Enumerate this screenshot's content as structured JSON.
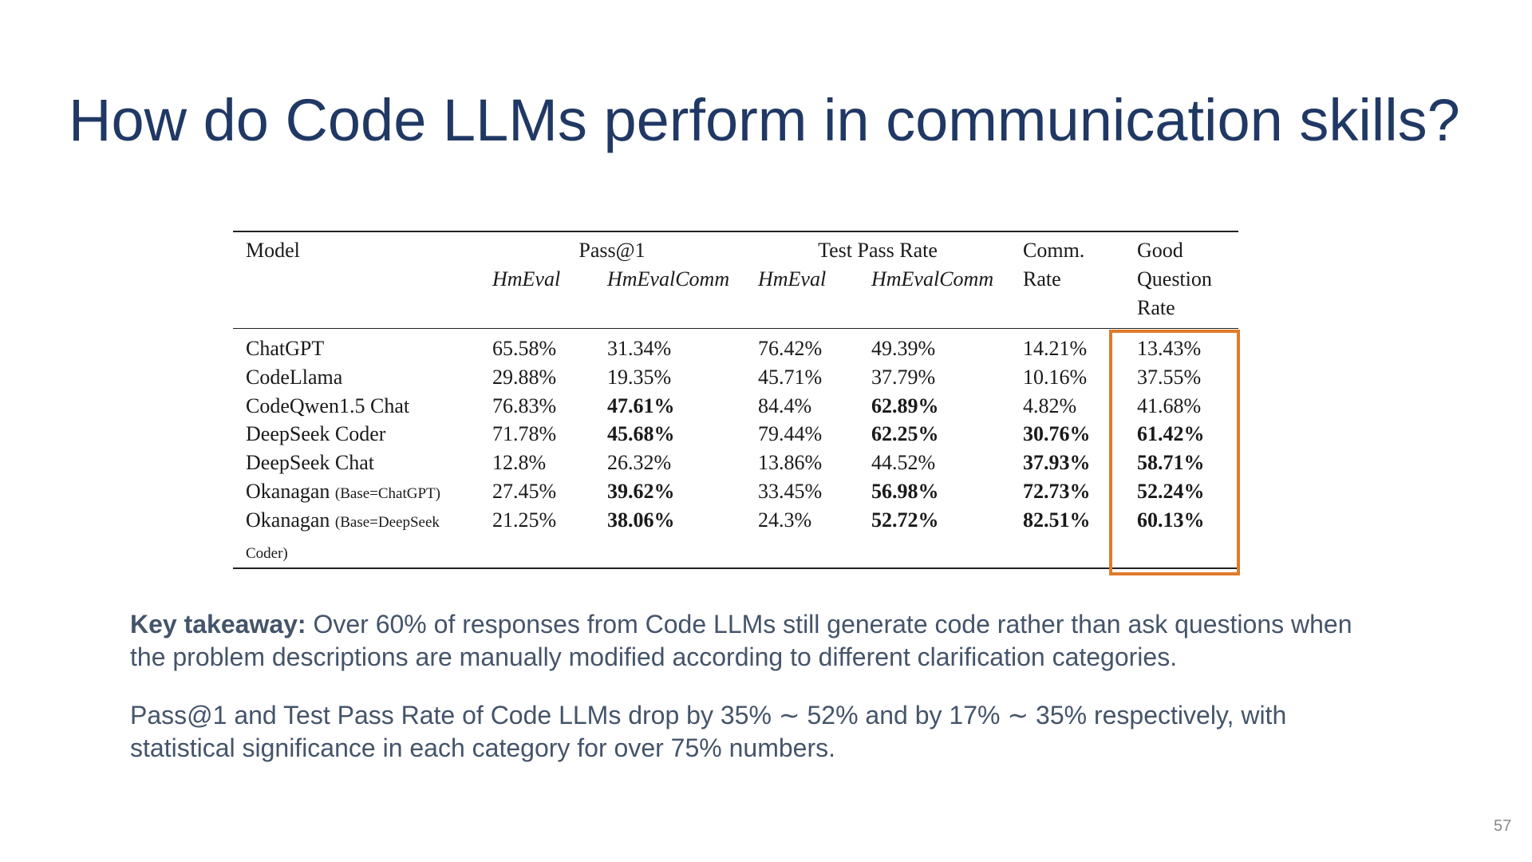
{
  "title": "How do Code LLMs perform in communication skills?",
  "table": {
    "header": {
      "model": "Model",
      "groups": [
        {
          "label": "Pass@1",
          "sub": [
            "HmEval",
            "HmEvalComm"
          ]
        },
        {
          "label": "Test Pass Rate",
          "sub": [
            "HmEval",
            "HmEvalComm"
          ]
        }
      ],
      "comm_rate": "Comm. Rate",
      "good_question_rate": "Good Question Rate"
    },
    "rows": [
      {
        "model": "ChatGPT",
        "values": [
          "65.58%",
          "31.34%",
          "76.42%",
          "49.39%",
          "14.21%",
          "13.43%"
        ],
        "bold": []
      },
      {
        "model": "CodeLlama",
        "values": [
          "29.88%",
          "19.35%",
          "45.71%",
          "37.79%",
          "10.16%",
          "37.55%"
        ],
        "bold": []
      },
      {
        "model": "CodeQwen1.5 Chat",
        "values": [
          "76.83%",
          "47.61%",
          "84.4%",
          "62.89%",
          "4.82%",
          "41.68%"
        ],
        "bold": [
          1,
          3
        ]
      },
      {
        "model": "DeepSeek Coder",
        "values": [
          "71.78%",
          "45.68%",
          "79.44%",
          "62.25%",
          "30.76%",
          "61.42%"
        ],
        "bold": [
          1,
          3,
          4,
          5
        ]
      },
      {
        "model": "DeepSeek Chat",
        "values": [
          "12.8%",
          "26.32%",
          "13.86%",
          "44.52%",
          "37.93%",
          "58.71%"
        ],
        "bold": [
          4,
          5
        ]
      },
      {
        "model": "Okanagan",
        "note": "(Base=ChatGPT)",
        "values": [
          "27.45%",
          "39.62%",
          "33.45%",
          "56.98%",
          "72.73%",
          "52.24%"
        ],
        "bold": [
          1,
          3,
          4,
          5
        ]
      },
      {
        "model": "Okanagan",
        "note": "(Base=DeepSeek Coder)",
        "values": [
          "21.25%",
          "38.06%",
          "24.3%",
          "52.72%",
          "82.51%",
          "60.13%"
        ],
        "bold": [
          1,
          3,
          4,
          5
        ]
      }
    ]
  },
  "takeaways": [
    {
      "label": "Key takeaway:",
      "text": "Over 60% of responses from Code LLMs still generate code rather than ask questions when the problem descriptions  are manually modified according to different clarification categories."
    },
    {
      "text": "Pass@1 and Test Pass Rate of Code LLMs drop by 35% ∼ 52% and by 17% ∼ 35% respectively, with statistical significance in each category for over 75% numbers."
    }
  ],
  "page_number": "57"
}
